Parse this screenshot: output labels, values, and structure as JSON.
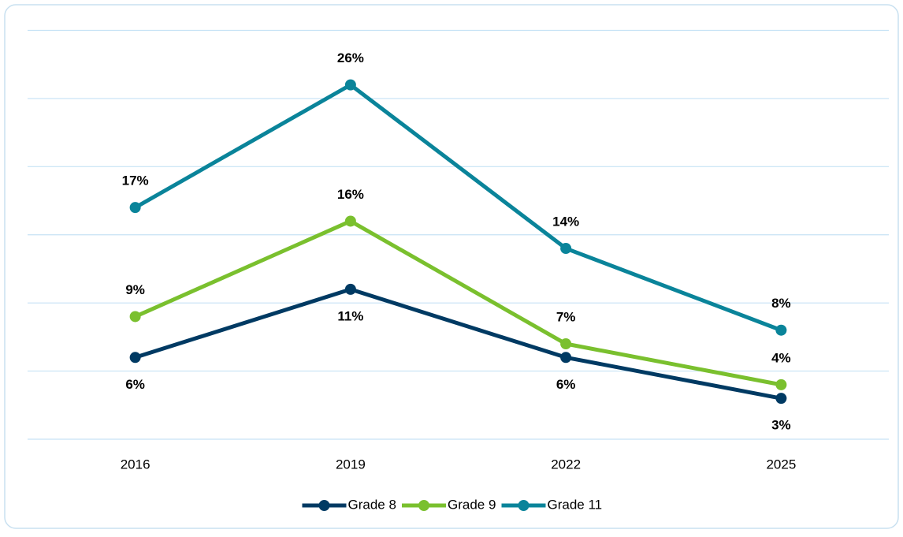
{
  "chart_data": {
    "type": "line",
    "categories": [
      "2016",
      "2019",
      "2022",
      "2025"
    ],
    "series": [
      {
        "name": "Grade 8",
        "color": "#003a63",
        "values": [
          6,
          11,
          6,
          3
        ],
        "value_labels": [
          "6%",
          "11%",
          "6%",
          "3%"
        ],
        "label_position": "below"
      },
      {
        "name": "Grade 9",
        "color": "#7ac02e",
        "values": [
          9,
          16,
          7,
          4
        ],
        "value_labels": [
          "9%",
          "16%",
          "7%",
          "4%"
        ],
        "label_position": "above"
      },
      {
        "name": "Grade 11",
        "color": "#0a849a",
        "values": [
          17,
          26,
          14,
          8
        ],
        "value_labels": [
          "17%",
          "26%",
          "14%",
          "8%"
        ],
        "label_position": "above"
      }
    ],
    "ylim": [
      0,
      30
    ],
    "yticks": [
      0,
      5,
      10,
      15,
      20,
      25,
      30
    ],
    "grid": true,
    "legend": "bottom"
  }
}
